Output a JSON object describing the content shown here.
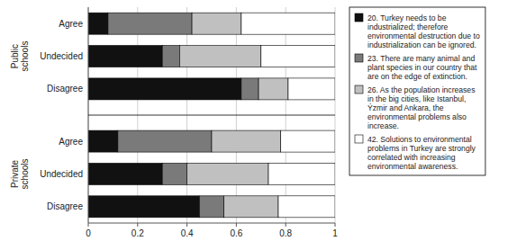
{
  "chart_data": {
    "type": "bar",
    "orientation": "horizontal",
    "stacked": true,
    "categories": [
      "Agree",
      "Undecided",
      "Disagree",
      "Agree",
      "Undecided",
      "Disagree"
    ],
    "group_labels": [
      "Public\nschools",
      "Private\nschools"
    ],
    "series": [
      {
        "name": "20. Turkey needs to be\nindustrialized; therefore\nenvironmental destruction due to\nindustrialization can be ignored.",
        "color": "#111111",
        "values": [
          0.08,
          0.3,
          0.62,
          0.12,
          0.3,
          0.45
        ]
      },
      {
        "name": "23. There are many animal and\nplant species in our country that\nare on the edge of extinction.",
        "color": "#7a7a7a",
        "values": [
          0.34,
          0.07,
          0.07,
          0.38,
          0.1,
          0.1
        ]
      },
      {
        "name": "26.  As the population increases\nin the big cities, like Istanbul,\nÝzmir and Ankara, the\nenvironmental problems also\nincrease.",
        "color": "#c0c0c0",
        "values": [
          0.2,
          0.33,
          0.12,
          0.28,
          0.33,
          0.22
        ]
      },
      {
        "name": "42. Solutions to environmental\nproblems in Turkey are strongly\ncorrelated with increasing\nenvironmental awareness.",
        "color": "#ffffff",
        "values": [
          0.38,
          0.3,
          0.19,
          0.22,
          0.27,
          0.23
        ]
      }
    ],
    "xlim": [
      0,
      1
    ],
    "xticks": [
      0,
      0.2,
      0.4,
      0.6,
      0.8,
      1
    ],
    "grid": true,
    "legend": "right"
  }
}
